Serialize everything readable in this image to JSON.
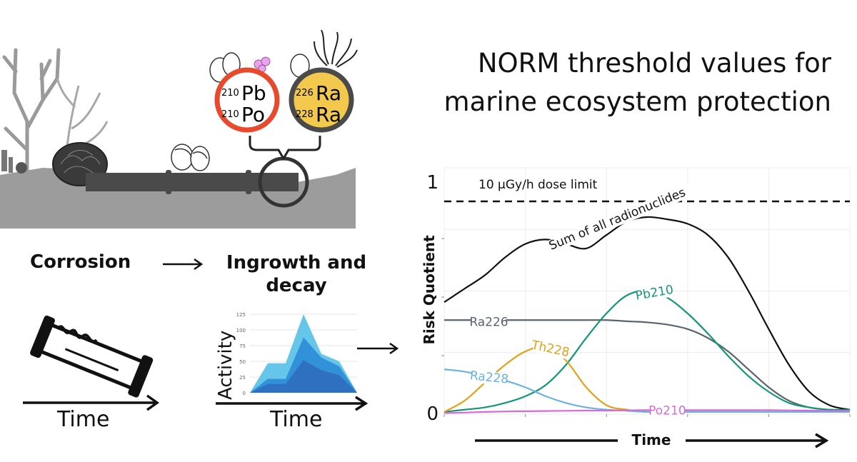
{
  "title": {
    "line1": "NORM threshold values for",
    "line2": "marine ecosystem protection"
  },
  "isotopes": {
    "left_circle": [
      {
        "mass": "210",
        "symbol": "Pb"
      },
      {
        "mass": "210",
        "symbol": "Po"
      }
    ],
    "right_circle": [
      {
        "mass": "226",
        "symbol": "Ra"
      },
      {
        "mass": "228",
        "symbol": "Ra"
      }
    ],
    "colors": {
      "left_ring": "#e84a2e",
      "right_ring": "#4a4a4a",
      "right_fill": "#f2c94c"
    }
  },
  "steps": {
    "corrosion": "Corrosion",
    "ingrowth": "Ingrowth and decay",
    "ingrowth_line1": "Ingrowth and",
    "ingrowth_line2": "decay",
    "time_left": "Time",
    "time_middle": "Time"
  },
  "activity_chart": {
    "ylabel": "Activity",
    "yticks": [
      "0",
      "25",
      "50",
      "75",
      "100",
      "125"
    ],
    "ymax": 125,
    "x": [
      0,
      1,
      2,
      3,
      4,
      5,
      6
    ],
    "series": [
      {
        "values": [
          0,
          47,
          47,
          125,
          62,
          50,
          0
        ],
        "color": "#5ec3e8"
      },
      {
        "values": [
          0,
          22,
          22,
          88,
          56,
          42,
          0
        ],
        "color": "#2f8fd8"
      },
      {
        "values": [
          0,
          14,
          14,
          52,
          36,
          28,
          0
        ],
        "color": "#2f6fbf"
      }
    ]
  },
  "chart_data": {
    "type": "line",
    "xlabel": "Time",
    "ylabel": "Risk Quotient",
    "yticks": [
      "0",
      "1"
    ],
    "ylim": [
      0,
      1.1
    ],
    "grid": true,
    "threshold": {
      "value": 0.95,
      "label": "10 µGy/h dose limit",
      "style": "dashed"
    },
    "x": [
      0,
      0.05,
      0.1,
      0.15,
      0.2,
      0.25,
      0.3,
      0.35,
      0.4,
      0.45,
      0.5,
      0.55,
      0.6,
      0.65,
      0.7,
      0.75,
      0.8,
      0.85,
      0.9,
      0.95,
      1.0
    ],
    "series": [
      {
        "name": "Sum of all radionuclides",
        "color": "#111111",
        "values": [
          0.5,
          0.56,
          0.62,
          0.7,
          0.76,
          0.78,
          0.76,
          0.74,
          0.8,
          0.86,
          0.88,
          0.87,
          0.85,
          0.8,
          0.7,
          0.55,
          0.38,
          0.22,
          0.1,
          0.04,
          0.02
        ]
      },
      {
        "name": "Ra226",
        "color": "#5a6470",
        "values": [
          0.42,
          0.42,
          0.42,
          0.42,
          0.42,
          0.42,
          0.42,
          0.42,
          0.42,
          0.415,
          0.41,
          0.4,
          0.38,
          0.34,
          0.28,
          0.2,
          0.12,
          0.06,
          0.03,
          0.02,
          0.02
        ]
      },
      {
        "name": "Pb210",
        "color": "#14967a",
        "values": [
          0.01,
          0.02,
          0.03,
          0.05,
          0.08,
          0.13,
          0.22,
          0.34,
          0.45,
          0.53,
          0.55,
          0.52,
          0.45,
          0.36,
          0.26,
          0.17,
          0.1,
          0.05,
          0.03,
          0.02,
          0.02
        ]
      },
      {
        "name": "Th228",
        "color": "#e0a21a",
        "values": [
          0.01,
          0.06,
          0.14,
          0.22,
          0.28,
          0.3,
          0.24,
          0.12,
          0.04,
          0.02,
          0.01,
          0.01,
          0.01,
          0.01,
          0.01,
          0.01,
          0.01,
          0.01,
          0.01,
          0.01,
          0.01
        ]
      },
      {
        "name": "Ra228",
        "color": "#6ab4df",
        "values": [
          0.2,
          0.19,
          0.17,
          0.15,
          0.12,
          0.08,
          0.05,
          0.03,
          0.02,
          0.015,
          0.01,
          0.01,
          0.01,
          0.01,
          0.01,
          0.01,
          0.01,
          0.01,
          0.01,
          0.01,
          0.01
        ]
      },
      {
        "name": "Po210",
        "color": "#d86ad8",
        "values": [
          0.005,
          0.007,
          0.01,
          0.012,
          0.013,
          0.014,
          0.015,
          0.016,
          0.016,
          0.017,
          0.018,
          0.018,
          0.018,
          0.018,
          0.018,
          0.018,
          0.018,
          0.017,
          0.016,
          0.015,
          0.015
        ]
      }
    ]
  }
}
